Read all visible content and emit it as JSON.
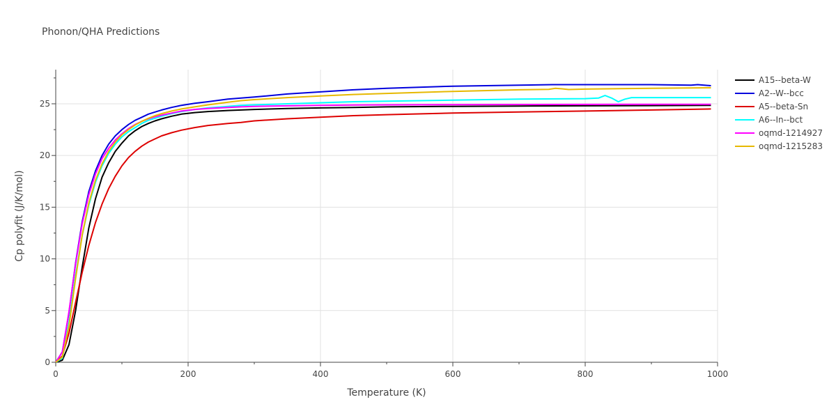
{
  "chart_data": {
    "type": "line",
    "title": "Phonon/QHA Predictions",
    "xlabel": "Temperature (K)",
    "ylabel": "Cp polyfit (J/K/mol)",
    "xlim": [
      0,
      1000
    ],
    "ylim": [
      0,
      28.3
    ],
    "xticks": [
      0,
      200,
      400,
      600,
      800,
      1000
    ],
    "yticks": [
      0,
      5,
      10,
      15,
      20,
      25
    ],
    "grid": true,
    "legend_position": "top-right",
    "series": [
      {
        "name": "A15--beta-W",
        "color": "#000000",
        "x": [
          0,
          10,
          20,
          30,
          40,
          50,
          60,
          70,
          80,
          90,
          100,
          110,
          120,
          130,
          140,
          150,
          160,
          175,
          190,
          210,
          230,
          260,
          280,
          300,
          350,
          400,
          450,
          500,
          600,
          700,
          800,
          900,
          990
        ],
        "y": [
          0,
          0.2,
          1.7,
          5.0,
          9.2,
          13.0,
          15.8,
          17.9,
          19.3,
          20.4,
          21.2,
          21.9,
          22.4,
          22.8,
          23.1,
          23.35,
          23.55,
          23.8,
          24.0,
          24.15,
          24.25,
          24.35,
          24.4,
          24.45,
          24.55,
          24.6,
          24.65,
          24.7,
          24.75,
          24.78,
          24.8,
          24.82,
          24.85
        ]
      },
      {
        "name": "A2--W--bcc",
        "color": "#0000dd",
        "x": [
          0,
          10,
          20,
          30,
          40,
          50,
          60,
          70,
          80,
          90,
          100,
          110,
          120,
          130,
          140,
          150,
          160,
          175,
          190,
          210,
          230,
          260,
          280,
          300,
          350,
          400,
          450,
          500,
          600,
          700,
          750,
          800,
          900,
          960,
          970,
          990
        ],
        "y": [
          0,
          1.0,
          4.8,
          9.6,
          13.6,
          16.5,
          18.5,
          20.0,
          21.1,
          21.9,
          22.5,
          23.0,
          23.4,
          23.7,
          24.0,
          24.2,
          24.4,
          24.65,
          24.85,
          25.05,
          25.2,
          25.45,
          25.55,
          25.65,
          25.95,
          26.15,
          26.35,
          26.5,
          26.7,
          26.8,
          26.85,
          26.85,
          26.85,
          26.8,
          26.85,
          26.75
        ]
      },
      {
        "name": "A5--beta-Sn",
        "color": "#dd0000",
        "x": [
          0,
          10,
          20,
          30,
          40,
          50,
          60,
          70,
          80,
          90,
          100,
          110,
          120,
          130,
          140,
          150,
          160,
          175,
          190,
          210,
          230,
          260,
          280,
          300,
          350,
          400,
          450,
          500,
          600,
          700,
          800,
          900,
          990
        ],
        "y": [
          0,
          0.6,
          2.8,
          5.8,
          8.7,
          11.3,
          13.5,
          15.3,
          16.8,
          18.0,
          19.0,
          19.8,
          20.4,
          20.9,
          21.3,
          21.6,
          21.9,
          22.2,
          22.45,
          22.7,
          22.9,
          23.1,
          23.2,
          23.35,
          23.55,
          23.7,
          23.85,
          23.95,
          24.1,
          24.2,
          24.3,
          24.4,
          24.5
        ]
      },
      {
        "name": "A6--In--bct",
        "color": "#00ffff",
        "x": [
          0,
          10,
          20,
          30,
          40,
          50,
          60,
          70,
          80,
          90,
          100,
          110,
          120,
          130,
          140,
          150,
          160,
          175,
          190,
          210,
          230,
          260,
          280,
          300,
          350,
          400,
          450,
          500,
          600,
          700,
          800,
          820,
          830,
          840,
          850,
          860,
          870,
          900,
          990
        ],
        "y": [
          0,
          0.4,
          3.8,
          8.4,
          12.3,
          15.2,
          17.4,
          19.0,
          20.2,
          21.1,
          21.8,
          22.3,
          22.7,
          23.1,
          23.4,
          23.6,
          23.8,
          24.05,
          24.25,
          24.45,
          24.6,
          24.75,
          24.85,
          24.9,
          25.0,
          25.1,
          25.2,
          25.25,
          25.35,
          25.45,
          25.5,
          25.55,
          25.8,
          25.55,
          25.2,
          25.45,
          25.6,
          25.6,
          25.6
        ]
      },
      {
        "name": "oqmd-1214927",
        "color": "#ff00ff",
        "x": [
          0,
          10,
          20,
          30,
          40,
          50,
          60,
          70,
          80,
          90,
          100,
          110,
          120,
          130,
          140,
          150,
          160,
          175,
          190,
          210,
          230,
          260,
          280,
          300,
          350,
          400,
          450,
          500,
          600,
          700,
          800,
          900,
          990
        ],
        "y": [
          0,
          1.0,
          4.9,
          9.5,
          13.4,
          16.2,
          18.2,
          19.7,
          20.7,
          21.5,
          22.1,
          22.6,
          23.0,
          23.3,
          23.55,
          23.75,
          23.9,
          24.1,
          24.3,
          24.45,
          24.55,
          24.65,
          24.7,
          24.75,
          24.8,
          24.85,
          24.88,
          24.9,
          24.92,
          24.93,
          24.94,
          24.95,
          24.95
        ]
      },
      {
        "name": "oqmd-1215283",
        "color": "#e6b800",
        "x": [
          0,
          10,
          20,
          30,
          40,
          50,
          60,
          70,
          80,
          90,
          100,
          110,
          120,
          130,
          140,
          150,
          160,
          175,
          190,
          210,
          230,
          260,
          280,
          300,
          350,
          400,
          450,
          500,
          600,
          700,
          745,
          755,
          765,
          775,
          800,
          900,
          990
        ],
        "y": [
          0,
          0.5,
          3.5,
          8.1,
          12.3,
          15.4,
          17.6,
          19.2,
          20.4,
          21.3,
          22.0,
          22.5,
          22.95,
          23.3,
          23.6,
          23.85,
          24.05,
          24.3,
          24.5,
          24.7,
          24.9,
          25.15,
          25.3,
          25.4,
          25.6,
          25.75,
          25.9,
          26.0,
          26.2,
          26.35,
          26.4,
          26.5,
          26.45,
          26.38,
          26.42,
          26.5,
          26.55
        ]
      }
    ]
  }
}
